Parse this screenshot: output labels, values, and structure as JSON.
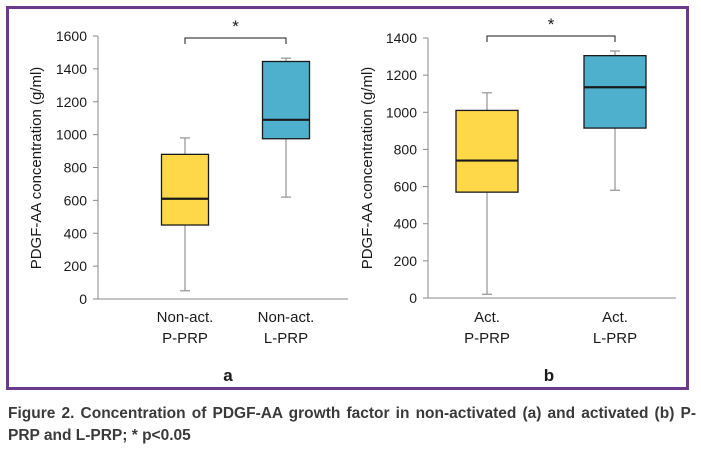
{
  "chart_data": [
    {
      "type": "box",
      "panel_label": "a",
      "ylabel": "PDGF-AA concentration (g/ml)",
      "ylim": [
        0,
        1600
      ],
      "yticks": [
        0,
        200,
        400,
        600,
        800,
        1000,
        1200,
        1400,
        1600
      ],
      "grid": false,
      "significance": {
        "label": "*",
        "between": [
          0,
          1
        ]
      },
      "categories": [
        {
          "lines": [
            "Non-act.",
            "P-PRP"
          ],
          "min": 50,
          "q1": 450,
          "median": 610,
          "q3": 880,
          "max": 980,
          "color": "#ffd84a"
        },
        {
          "lines": [
            "Non-act.",
            "L-PRP"
          ],
          "min": 620,
          "q1": 975,
          "median": 1090,
          "q3": 1445,
          "max": 1465,
          "color": "#4fb0ce"
        }
      ]
    },
    {
      "type": "box",
      "panel_label": "b",
      "ylabel": "PDGF-AA concentration (g/ml)",
      "ylim": [
        0,
        1400
      ],
      "yticks": [
        0,
        200,
        400,
        600,
        800,
        1000,
        1200,
        1400
      ],
      "grid": false,
      "significance": {
        "label": "*",
        "between": [
          0,
          1
        ]
      },
      "categories": [
        {
          "lines": [
            "Act.",
            "P-PRP"
          ],
          "min": 20,
          "q1": 570,
          "median": 740,
          "q3": 1010,
          "max": 1105,
          "color": "#ffd84a"
        },
        {
          "lines": [
            "Act.",
            "L-PRP"
          ],
          "min": 580,
          "q1": 915,
          "median": 1135,
          "q3": 1305,
          "max": 1330,
          "color": "#4fb0ce"
        }
      ]
    }
  ],
  "caption": "Figure 2. Concentration of PDGF-AA growth factor in non-activated (a) and activated (b) P-PRP and L-PRP; * p<0.05",
  "colors": {
    "frame": "#6b3a8c",
    "box_outline": "#1a1a1a",
    "whisker": "#9a9a9a",
    "axis": "#8a8a8a"
  }
}
